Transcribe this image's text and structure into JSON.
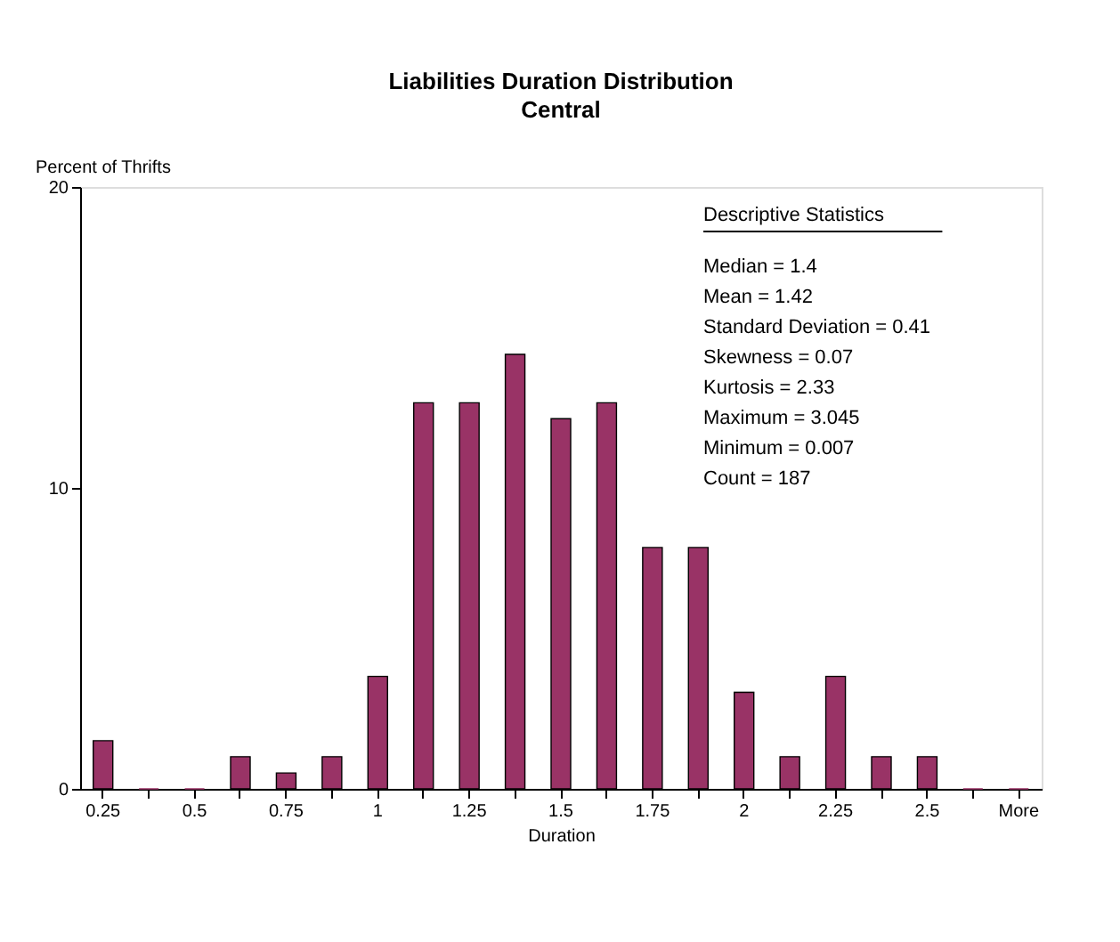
{
  "chart_data": {
    "type": "bar",
    "title": "Liabilities Duration Distribution",
    "subtitle": "Central",
    "xlabel": "Duration",
    "ylabel": "Percent of Thrifts",
    "categories": [
      "0.25",
      null,
      "0.5",
      null,
      "0.75",
      null,
      "1",
      null,
      "1.25",
      null,
      "1.5",
      null,
      "1.75",
      null,
      "2",
      null,
      "2.25",
      null,
      "2.5",
      null,
      "More"
    ],
    "values": [
      1.6,
      0,
      0,
      1.07,
      0.53,
      1.07,
      3.74,
      12.83,
      12.83,
      14.44,
      12.3,
      12.83,
      8.02,
      8.02,
      3.21,
      1.07,
      3.74,
      1.07,
      1.07,
      0,
      0
    ],
    "color": "#993366",
    "ylim": [
      0,
      20
    ],
    "yticks": [
      0,
      10,
      20
    ],
    "grid": false,
    "annotations": [
      "Descriptive Statistics",
      "Median = 1.4",
      "Mean = 1.42",
      "Standard Deviation = 0.41",
      "Skewness = 0.07",
      "Kurtosis = 2.33",
      "Maximum = 3.045",
      "Minimum = 0.007",
      "Count = 187"
    ]
  }
}
